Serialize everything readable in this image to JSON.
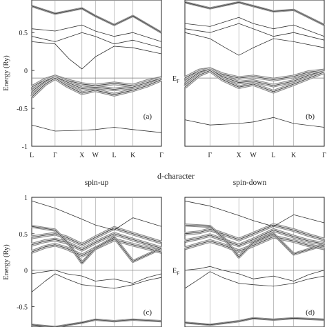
{
  "figure": {
    "middle_title": "d-character",
    "spin_up_label": "spin-up",
    "spin_down_label": "spin-down"
  },
  "chart_data": [
    {
      "type": "line",
      "panel_label": "(a)",
      "ylabel": "Energy (Ry)",
      "ylim": [
        -1,
        1
      ],
      "yticks": [
        "0.5",
        "0",
        "-0.5",
        "-1"
      ],
      "x_ticks": [
        "L",
        "Γ",
        "X",
        "W",
        "L",
        "K",
        "Γ"
      ],
      "x_tick_positions": [
        0,
        0.87,
        1.87,
        2.37,
        3.07,
        3.77,
        4.83
      ],
      "fermi_level": -0.1,
      "bands": [
        {
          "x": [
            0,
            0.87,
            1.87,
            2.37,
            3.07,
            3.77,
            4.83
          ],
          "y": [
            -0.72,
            -0.8,
            -0.79,
            -0.78,
            -0.75,
            -0.78,
            -0.82
          ],
          "weight": 1
        },
        {
          "x": [
            0,
            0.5,
            0.87,
            1.3,
            1.87,
            2.37,
            3.07,
            3.77,
            4.3,
            4.83
          ],
          "y": [
            -0.22,
            -0.12,
            -0.08,
            -0.13,
            -0.18,
            -0.2,
            -0.17,
            -0.2,
            -0.14,
            -0.1
          ],
          "weight": 4
        },
        {
          "x": [
            0,
            0.5,
            0.87,
            1.3,
            1.87,
            2.37,
            3.07,
            3.77,
            4.3,
            4.83
          ],
          "y": [
            -0.28,
            -0.14,
            -0.08,
            -0.15,
            -0.24,
            -0.22,
            -0.25,
            -0.22,
            -0.16,
            -0.1
          ],
          "weight": 4
        },
        {
          "x": [
            0,
            0.5,
            0.87,
            1.3,
            1.87,
            2.37,
            3.07,
            3.77,
            4.3,
            4.83
          ],
          "y": [
            -0.35,
            -0.18,
            -0.1,
            -0.2,
            -0.3,
            -0.26,
            -0.32,
            -0.26,
            -0.2,
            -0.12
          ],
          "weight": 4
        },
        {
          "x": [
            0,
            0.87,
            1.4,
            1.87,
            2.37,
            3.07,
            3.77,
            4.83
          ],
          "y": [
            0.38,
            0.35,
            0.15,
            0.02,
            0.18,
            0.32,
            0.3,
            0.22
          ],
          "weight": 1
        },
        {
          "x": [
            0,
            0.87,
            1.87,
            2.37,
            3.07,
            3.77,
            4.83
          ],
          "y": [
            0.45,
            0.38,
            0.5,
            0.45,
            0.35,
            0.4,
            0.3
          ],
          "weight": 1
        },
        {
          "x": [
            0,
            0.87,
            1.87,
            2.37,
            3.07,
            3.77,
            4.83
          ],
          "y": [
            0.55,
            0.52,
            0.6,
            0.52,
            0.45,
            0.5,
            0.38
          ],
          "weight": 1
        },
        {
          "x": [
            0,
            0.87,
            1.87,
            2.37,
            3.07,
            3.77,
            4.83
          ],
          "y": [
            0.85,
            0.75,
            0.82,
            0.72,
            0.6,
            0.72,
            0.5
          ],
          "weight": 2
        }
      ]
    },
    {
      "type": "line",
      "panel_label": "(b)",
      "fermi_label": "E_F",
      "ylim": [
        -1,
        1
      ],
      "x_ticks": [
        "Γ",
        "X",
        "W",
        "L",
        "K",
        "Γ"
      ],
      "x_tick_positions": [
        0.87,
        1.87,
        2.37,
        3.07,
        3.77,
        4.83
      ],
      "fermi_level": -0.1,
      "bands": [
        {
          "x": [
            0,
            0.87,
            1.87,
            2.37,
            3.07,
            3.77,
            4.83
          ],
          "y": [
            -0.65,
            -0.72,
            -0.7,
            -0.68,
            -0.62,
            -0.7,
            -0.75
          ],
          "weight": 1
        },
        {
          "x": [
            0,
            0.5,
            0.87,
            1.3,
            1.87,
            2.37,
            3.07,
            3.77,
            4.3,
            4.83
          ],
          "y": [
            -0.1,
            0.0,
            0.02,
            -0.05,
            -0.1,
            -0.08,
            -0.12,
            -0.08,
            -0.02,
            0.0
          ],
          "weight": 4
        },
        {
          "x": [
            0,
            0.5,
            0.87,
            1.3,
            1.87,
            2.37,
            3.07,
            3.77,
            4.3,
            4.83
          ],
          "y": [
            -0.16,
            -0.02,
            0.02,
            -0.08,
            -0.16,
            -0.14,
            -0.2,
            -0.14,
            -0.06,
            0.0
          ],
          "weight": 4
        },
        {
          "x": [
            0,
            0.5,
            0.87,
            1.3,
            1.87,
            2.37,
            3.07,
            3.77,
            4.3,
            4.83
          ],
          "y": [
            -0.22,
            -0.06,
            0.0,
            -0.12,
            -0.22,
            -0.18,
            -0.28,
            -0.18,
            -0.1,
            -0.02
          ],
          "weight": 4
        },
        {
          "x": [
            0,
            0.87,
            1.4,
            1.87,
            2.37,
            3.07,
            3.77,
            4.83
          ],
          "y": [
            0.5,
            0.42,
            0.3,
            0.2,
            0.3,
            0.42,
            0.38,
            0.3
          ],
          "weight": 1
        },
        {
          "x": [
            0,
            0.87,
            1.87,
            2.37,
            3.07,
            3.77,
            4.83
          ],
          "y": [
            0.55,
            0.5,
            0.62,
            0.55,
            0.45,
            0.5,
            0.4
          ],
          "weight": 1
        },
        {
          "x": [
            0,
            0.87,
            1.87,
            2.37,
            3.07,
            3.77,
            4.83
          ],
          "y": [
            0.62,
            0.58,
            0.7,
            0.62,
            0.55,
            0.6,
            0.45
          ],
          "weight": 1
        },
        {
          "x": [
            0,
            0.87,
            1.87,
            2.37,
            3.07,
            3.77,
            4.83
          ],
          "y": [
            0.9,
            0.82,
            0.9,
            0.85,
            0.78,
            0.8,
            0.6
          ],
          "weight": 2
        }
      ]
    },
    {
      "type": "line",
      "panel_label": "(c)",
      "ylabel": "Energy (Ry)",
      "ylim": [
        -0.8,
        1
      ],
      "yticks": [
        "1",
        "0.5",
        "0",
        "-0.5"
      ],
      "fermi_level": 0,
      "x_tick_positions": [
        0.87,
        1.87,
        2.37,
        3.07,
        3.77,
        4.83
      ],
      "bands": [
        {
          "x": [
            0,
            0.87,
            1.87,
            2.37,
            3.07,
            3.77,
            4.83
          ],
          "y": [
            -0.75,
            -0.78,
            -0.72,
            -0.68,
            -0.7,
            -0.68,
            -0.7
          ],
          "weight": 2
        },
        {
          "x": [
            0,
            0.5,
            0.87,
            1.3,
            1.87,
            2.37,
            3.07,
            3.77,
            4.3,
            4.83
          ],
          "y": [
            -0.3,
            -0.15,
            -0.05,
            -0.12,
            -0.2,
            -0.22,
            -0.25,
            -0.2,
            -0.14,
            -0.1
          ],
          "weight": 1
        },
        {
          "x": [
            0,
            0.5,
            0.87,
            1.3,
            1.87,
            2.37,
            3.07,
            3.77,
            4.3,
            4.83
          ],
          "y": [
            -0.05,
            -0.02,
            0.0,
            -0.05,
            -0.08,
            -0.15,
            -0.12,
            -0.18,
            -0.1,
            -0.05
          ],
          "weight": 1
        },
        {
          "x": [
            0,
            0.5,
            0.87,
            1.3,
            1.87,
            2.37,
            3.07,
            3.77,
            4.3,
            4.83
          ],
          "y": [
            0.25,
            0.32,
            0.35,
            0.3,
            0.2,
            0.3,
            0.42,
            0.35,
            0.3,
            0.25
          ],
          "weight": 4
        },
        {
          "x": [
            0,
            0.5,
            0.87,
            1.3,
            1.87,
            2.37,
            3.07,
            3.77,
            4.3,
            4.83
          ],
          "y": [
            0.35,
            0.4,
            0.42,
            0.38,
            0.28,
            0.38,
            0.5,
            0.42,
            0.36,
            0.3
          ],
          "weight": 4
        },
        {
          "x": [
            0,
            0.5,
            0.87,
            1.3,
            1.87,
            2.37,
            3.07,
            3.77,
            4.3,
            4.83
          ],
          "y": [
            0.45,
            0.48,
            0.5,
            0.45,
            0.35,
            0.45,
            0.58,
            0.5,
            0.44,
            0.38
          ],
          "weight": 4
        },
        {
          "x": [
            0,
            0.87,
            1.4,
            1.87,
            2.37,
            3.07,
            3.77,
            4.83
          ],
          "y": [
            0.6,
            0.55,
            0.35,
            0.1,
            0.3,
            0.45,
            0.12,
            0.3
          ],
          "weight": 3
        },
        {
          "x": [
            0,
            0.87,
            1.87,
            2.37,
            3.07,
            3.77,
            4.83
          ],
          "y": [
            0.95,
            0.85,
            0.7,
            0.62,
            0.55,
            0.72,
            0.6
          ],
          "weight": 1
        }
      ]
    },
    {
      "type": "line",
      "panel_label": "(d)",
      "fermi_label": "E_F",
      "ylim": [
        -0.8,
        1
      ],
      "fermi_level": 0,
      "x_tick_positions": [
        0.87,
        1.87,
        2.37,
        3.07,
        3.77,
        4.83
      ],
      "bands": [
        {
          "x": [
            0,
            0.87,
            1.87,
            2.37,
            3.07,
            3.77,
            4.83
          ],
          "y": [
            -0.72,
            -0.75,
            -0.7,
            -0.66,
            -0.68,
            -0.66,
            -0.68
          ],
          "weight": 2
        },
        {
          "x": [
            0,
            0.5,
            0.87,
            1.3,
            1.87,
            2.37,
            3.07,
            3.77,
            4.3,
            4.83
          ],
          "y": [
            -0.25,
            -0.12,
            -0.02,
            -0.1,
            -0.18,
            -0.2,
            -0.22,
            -0.18,
            -0.12,
            -0.08
          ],
          "weight": 1
        },
        {
          "x": [
            0,
            0.5,
            0.87,
            1.3,
            1.87,
            2.37,
            3.07,
            3.77,
            4.3,
            4.83
          ],
          "y": [
            0.0,
            0.02,
            0.05,
            0.0,
            -0.05,
            -0.12,
            -0.08,
            -0.15,
            -0.06,
            0.0
          ],
          "weight": 1
        },
        {
          "x": [
            0,
            0.5,
            0.87,
            1.3,
            1.87,
            2.37,
            3.07,
            3.77,
            4.3,
            4.83
          ],
          "y": [
            0.3,
            0.36,
            0.4,
            0.35,
            0.26,
            0.34,
            0.46,
            0.4,
            0.34,
            0.3
          ],
          "weight": 4
        },
        {
          "x": [
            0,
            0.5,
            0.87,
            1.3,
            1.87,
            2.37,
            3.07,
            3.77,
            4.3,
            4.83
          ],
          "y": [
            0.4,
            0.44,
            0.48,
            0.42,
            0.34,
            0.42,
            0.55,
            0.46,
            0.4,
            0.36
          ],
          "weight": 4
        },
        {
          "x": [
            0,
            0.5,
            0.87,
            1.3,
            1.87,
            2.37,
            3.07,
            3.77,
            4.3,
            4.83
          ],
          "y": [
            0.5,
            0.52,
            0.56,
            0.5,
            0.42,
            0.5,
            0.62,
            0.55,
            0.48,
            0.42
          ],
          "weight": 4
        },
        {
          "x": [
            0,
            0.87,
            1.4,
            1.87,
            2.37,
            3.07,
            3.77,
            4.83
          ],
          "y": [
            0.62,
            0.6,
            0.42,
            0.18,
            0.38,
            0.5,
            0.22,
            0.35
          ],
          "weight": 3
        },
        {
          "x": [
            0,
            0.87,
            1.87,
            2.37,
            3.07,
            3.77,
            4.83
          ],
          "y": [
            0.95,
            0.88,
            0.75,
            0.68,
            0.6,
            0.76,
            0.65
          ],
          "weight": 1
        }
      ]
    }
  ]
}
